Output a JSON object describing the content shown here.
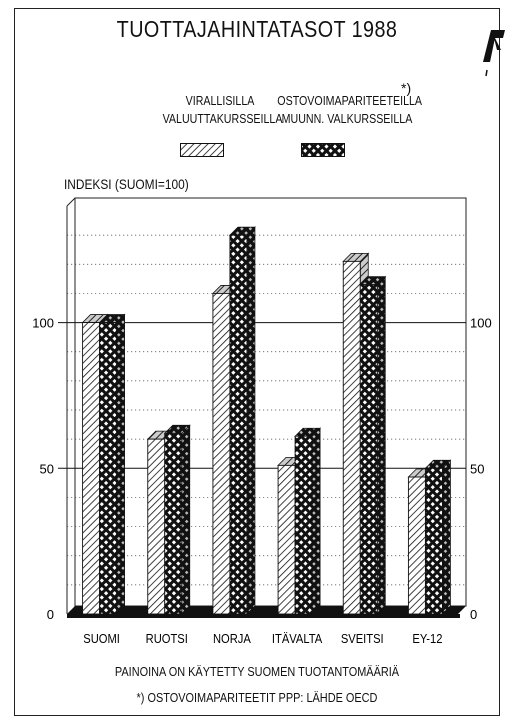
{
  "chart_data": {
    "type": "bar",
    "title": "TUOTTAJAHINTATASOT 1988",
    "ylabel": "INDEKSI (SUOMI=100)",
    "categories": [
      "SUOMI",
      "RUOTSI",
      "NORJA",
      "ITÄVALTA",
      "SVEITSI",
      "EY-12"
    ],
    "series": [
      {
        "name": "VIRALLISILLA VALUUTTAKURSSEILLA",
        "values": [
          100,
          60,
          110,
          51,
          121,
          47
        ]
      },
      {
        "name": "OSTOVOIMAPARITEETEILLA MUUNN. VALKURSSEILLA",
        "values": [
          100,
          62,
          130,
          61,
          113,
          50
        ]
      }
    ],
    "ylim": [
      0,
      140
    ],
    "yticks": [
      0,
      50,
      100
    ],
    "grid": "dotted horizontal lines, solid at 50 and 100",
    "legend": {
      "series1_lines": [
        "VIRALLISILLA",
        "VALUUTTAKURSSEILLA"
      ],
      "series2_lines": [
        "OSTOVOIMAPARITEETEILLA",
        "MUUNN. VALKURSSEILLA"
      ],
      "series2_mark": "*)",
      "placement": "top"
    },
    "notes": [
      "PAINOINA ON KÄYTETTY SUOMEN TUOTANTOMÄÄRIÄ",
      "*) OSTOVOIMAPARITEETIT PPP: LÄHDE OECD"
    ]
  },
  "logo": {
    "name": "pt-logo"
  }
}
